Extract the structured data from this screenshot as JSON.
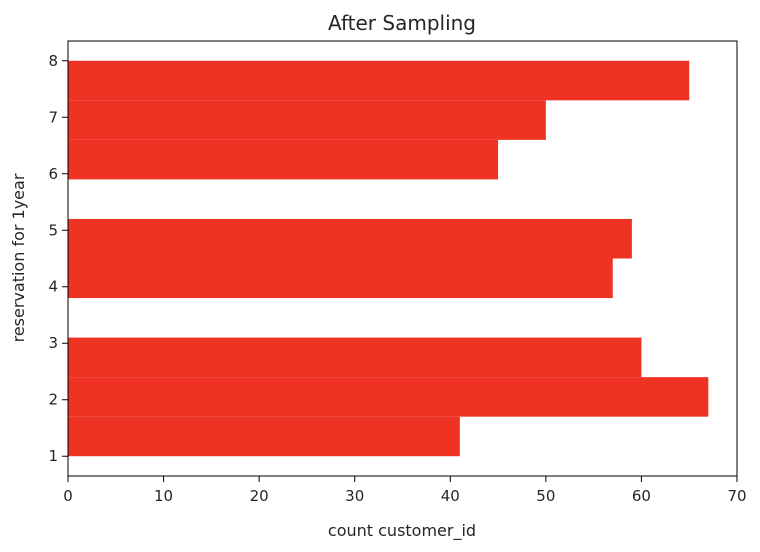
{
  "chart_data": {
    "type": "histogram",
    "orientation": "horizontal",
    "title": "After Sampling",
    "xlabel": "count customer_id",
    "ylabel": "reservation for 1year",
    "bar_color": "#ee3224",
    "xlim": [
      0,
      70
    ],
    "ylim": [
      0.65,
      8.35
    ],
    "xticks": [
      0,
      10,
      20,
      30,
      40,
      50,
      60,
      70
    ],
    "yticks": [
      1,
      2,
      3,
      4,
      5,
      6,
      7,
      8
    ],
    "bins": [
      {
        "y0": 1.0,
        "y1": 1.7,
        "value": 41
      },
      {
        "y0": 1.7,
        "y1": 2.4,
        "value": 67
      },
      {
        "y0": 2.4,
        "y1": 3.1,
        "value": 60
      },
      {
        "y0": 3.8,
        "y1": 4.5,
        "value": 57
      },
      {
        "y0": 4.5,
        "y1": 5.2,
        "value": 59
      },
      {
        "y0": 5.9,
        "y1": 6.6,
        "value": 45
      },
      {
        "y0": 6.6,
        "y1": 7.3,
        "value": 50
      },
      {
        "y0": 7.3,
        "y1": 8.0,
        "value": 65
      }
    ]
  }
}
